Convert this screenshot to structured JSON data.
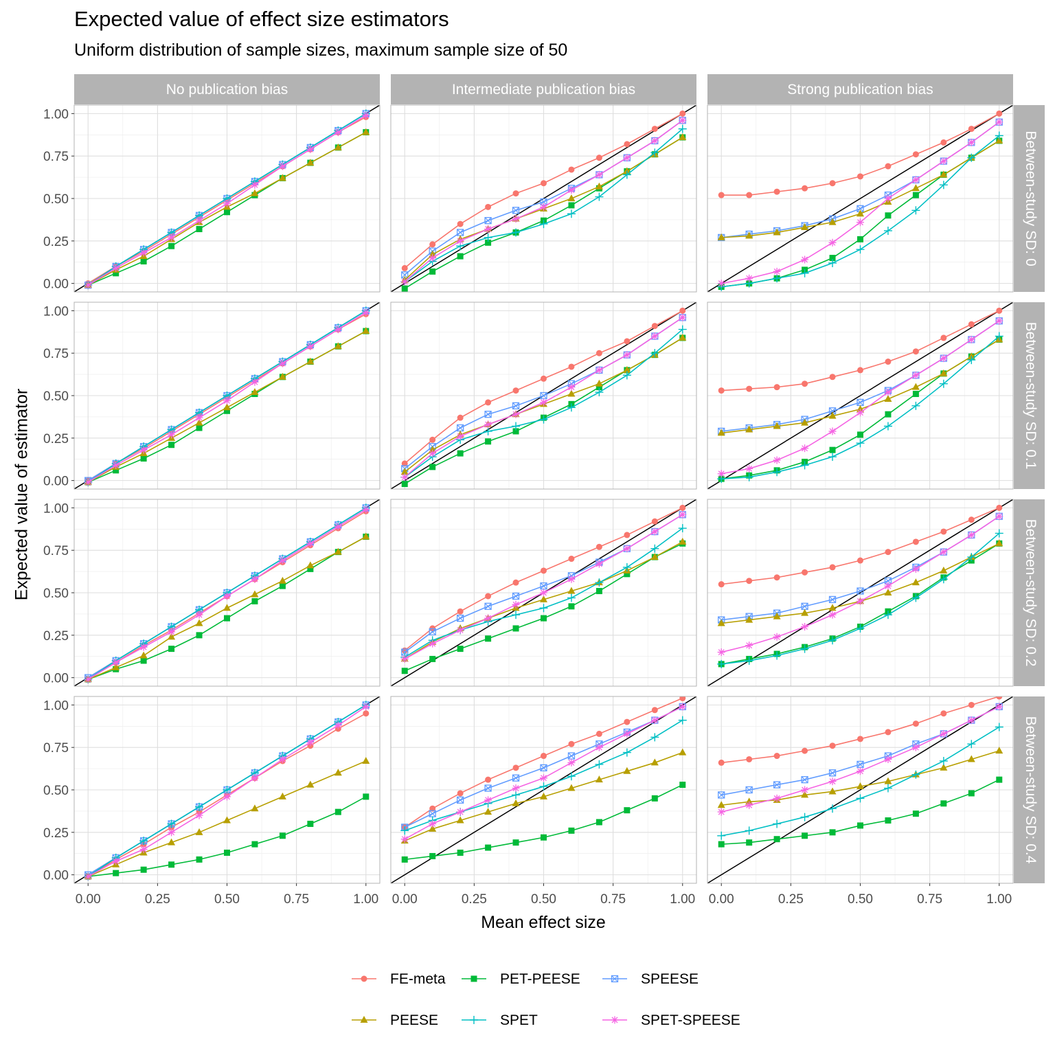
{
  "chart_data": {
    "type": "line",
    "title": "Expected value of effect size estimators",
    "subtitle": "Uniform distribution of sample sizes, maximum sample size of 50",
    "xlabel": "Mean effect size",
    "ylabel": "Expected value of estimator",
    "xlim": [
      -0.05,
      1.05
    ],
    "ylim": [
      -0.05,
      1.05
    ],
    "x_ticks": [
      "0.00",
      "0.25",
      "0.50",
      "0.75",
      "1.00"
    ],
    "y_ticks": [
      "0.00",
      "0.25",
      "0.50",
      "0.75",
      "1.00"
    ],
    "x": [
      0,
      0.1,
      0.2,
      0.3,
      0.4,
      0.5,
      0.6,
      0.7,
      0.8,
      0.9,
      1.0
    ],
    "reference_line": "y = x",
    "column_facets": [
      "No publication bias",
      "Intermediate publication bias",
      "Strong publication bias"
    ],
    "row_facets": [
      "Between-study SD: 0",
      "Between-study SD: 0.1",
      "Between-study SD: 0.2",
      "Between-study SD: 0.4"
    ],
    "legend_order": [
      "FE-meta",
      "PET-PEESE",
      "SPEESE",
      "PEESE",
      "SPET",
      "SPET-SPEESE"
    ],
    "series_styles": {
      "FE-meta": {
        "color": "#F8766D",
        "shape": "circle"
      },
      "PEESE": {
        "color": "#B79F00",
        "shape": "triangle"
      },
      "PET-PEESE": {
        "color": "#00BA38",
        "shape": "square"
      },
      "SPET": {
        "color": "#00BFC4",
        "shape": "plus"
      },
      "SPEESE": {
        "color": "#619CFF",
        "shape": "square-x"
      },
      "SPET-SPEESE": {
        "color": "#F564E3",
        "shape": "asterisk"
      }
    },
    "panels": [
      [
        {
          "FE-meta": [
            0.0,
            0.1,
            0.19,
            0.29,
            0.39,
            0.49,
            0.59,
            0.69,
            0.79,
            0.89,
            0.98
          ],
          "PEESE": [
            -0.01,
            0.08,
            0.16,
            0.26,
            0.36,
            0.45,
            0.53,
            0.62,
            0.71,
            0.8,
            0.89
          ],
          "PET-PEESE": [
            -0.01,
            0.06,
            0.13,
            0.22,
            0.32,
            0.42,
            0.52,
            0.62,
            0.71,
            0.8,
            0.89
          ],
          "SPET": [
            -0.01,
            0.1,
            0.2,
            0.3,
            0.4,
            0.5,
            0.6,
            0.7,
            0.8,
            0.9,
            1.0
          ],
          "SPEESE": [
            -0.01,
            0.1,
            0.2,
            0.3,
            0.4,
            0.5,
            0.6,
            0.7,
            0.8,
            0.9,
            1.0
          ],
          "SPET-SPEESE": [
            -0.01,
            0.09,
            0.18,
            0.27,
            0.37,
            0.47,
            0.58,
            0.69,
            0.79,
            0.89,
            0.99
          ]
        },
        {
          "FE-meta": [
            0.09,
            0.23,
            0.35,
            0.45,
            0.53,
            0.59,
            0.67,
            0.74,
            0.82,
            0.91,
            1.0
          ],
          "PEESE": [
            0.02,
            0.17,
            0.26,
            0.32,
            0.38,
            0.44,
            0.5,
            0.57,
            0.66,
            0.76,
            0.86
          ],
          "PET-PEESE": [
            -0.03,
            0.07,
            0.16,
            0.24,
            0.3,
            0.37,
            0.46,
            0.56,
            0.66,
            0.76,
            0.86
          ],
          "SPET": [
            0.01,
            0.13,
            0.22,
            0.27,
            0.3,
            0.35,
            0.41,
            0.51,
            0.64,
            0.77,
            0.91
          ],
          "SPEESE": [
            0.05,
            0.19,
            0.3,
            0.37,
            0.43,
            0.48,
            0.56,
            0.64,
            0.74,
            0.84,
            0.96
          ],
          "SPET-SPEESE": [
            0.01,
            0.15,
            0.25,
            0.32,
            0.38,
            0.45,
            0.55,
            0.64,
            0.74,
            0.84,
            0.96
          ]
        },
        {
          "FE-meta": [
            0.52,
            0.52,
            0.54,
            0.56,
            0.59,
            0.63,
            0.69,
            0.76,
            0.83,
            0.91,
            1.0
          ],
          "PEESE": [
            0.27,
            0.28,
            0.3,
            0.33,
            0.36,
            0.41,
            0.48,
            0.56,
            0.64,
            0.74,
            0.84
          ],
          "PET-PEESE": [
            -0.02,
            0.0,
            0.03,
            0.08,
            0.15,
            0.26,
            0.4,
            0.52,
            0.64,
            0.74,
            0.84
          ],
          "SPET": [
            -0.02,
            0.0,
            0.03,
            0.06,
            0.12,
            0.2,
            0.31,
            0.43,
            0.58,
            0.74,
            0.87
          ],
          "SPEESE": [
            0.27,
            0.29,
            0.31,
            0.34,
            0.38,
            0.44,
            0.52,
            0.61,
            0.72,
            0.83,
            0.95
          ],
          "SPET-SPEESE": [
            0.0,
            0.03,
            0.07,
            0.14,
            0.24,
            0.36,
            0.5,
            0.61,
            0.72,
            0.83,
            0.95
          ]
        }
      ],
      [
        {
          "FE-meta": [
            0.0,
            0.1,
            0.19,
            0.29,
            0.39,
            0.49,
            0.59,
            0.69,
            0.79,
            0.89,
            0.98
          ],
          "PEESE": [
            -0.01,
            0.08,
            0.16,
            0.25,
            0.34,
            0.43,
            0.52,
            0.61,
            0.7,
            0.79,
            0.88
          ],
          "PET-PEESE": [
            -0.01,
            0.06,
            0.13,
            0.21,
            0.31,
            0.41,
            0.51,
            0.61,
            0.7,
            0.79,
            0.88
          ],
          "SPET": [
            -0.01,
            0.1,
            0.2,
            0.3,
            0.4,
            0.5,
            0.6,
            0.7,
            0.8,
            0.9,
            1.0
          ],
          "SPEESE": [
            0.0,
            0.1,
            0.2,
            0.3,
            0.4,
            0.5,
            0.6,
            0.7,
            0.8,
            0.9,
            1.0
          ],
          "SPET-SPEESE": [
            -0.01,
            0.09,
            0.18,
            0.27,
            0.37,
            0.47,
            0.58,
            0.69,
            0.79,
            0.89,
            0.99
          ]
        },
        {
          "FE-meta": [
            0.1,
            0.24,
            0.37,
            0.46,
            0.53,
            0.6,
            0.67,
            0.75,
            0.82,
            0.91,
            1.0
          ],
          "PEESE": [
            0.05,
            0.18,
            0.27,
            0.33,
            0.39,
            0.45,
            0.51,
            0.57,
            0.65,
            0.74,
            0.84
          ],
          "PET-PEESE": [
            -0.02,
            0.08,
            0.16,
            0.23,
            0.29,
            0.37,
            0.45,
            0.55,
            0.65,
            0.74,
            0.84
          ],
          "SPET": [
            0.02,
            0.14,
            0.24,
            0.29,
            0.32,
            0.36,
            0.43,
            0.52,
            0.62,
            0.75,
            0.89
          ],
          "SPEESE": [
            0.07,
            0.2,
            0.31,
            0.39,
            0.44,
            0.5,
            0.57,
            0.65,
            0.74,
            0.85,
            0.96
          ],
          "SPET-SPEESE": [
            0.02,
            0.16,
            0.26,
            0.33,
            0.39,
            0.46,
            0.55,
            0.65,
            0.74,
            0.85,
            0.96
          ]
        },
        {
          "FE-meta": [
            0.53,
            0.54,
            0.55,
            0.57,
            0.61,
            0.65,
            0.7,
            0.76,
            0.84,
            0.92,
            1.0
          ],
          "PEESE": [
            0.28,
            0.3,
            0.32,
            0.34,
            0.38,
            0.42,
            0.48,
            0.55,
            0.63,
            0.73,
            0.83
          ],
          "PET-PEESE": [
            0.01,
            0.03,
            0.06,
            0.11,
            0.18,
            0.27,
            0.39,
            0.51,
            0.63,
            0.73,
            0.83
          ],
          "SPET": [
            0.01,
            0.02,
            0.05,
            0.09,
            0.14,
            0.22,
            0.32,
            0.44,
            0.57,
            0.71,
            0.85
          ],
          "SPEESE": [
            0.29,
            0.31,
            0.33,
            0.36,
            0.41,
            0.46,
            0.53,
            0.62,
            0.72,
            0.83,
            0.94
          ],
          "SPET-SPEESE": [
            0.04,
            0.07,
            0.12,
            0.19,
            0.29,
            0.4,
            0.52,
            0.62,
            0.72,
            0.83,
            0.94
          ]
        }
      ],
      [
        {
          "FE-meta": [
            -0.01,
            0.09,
            0.19,
            0.28,
            0.38,
            0.48,
            0.58,
            0.68,
            0.78,
            0.88,
            0.98
          ],
          "PEESE": [
            -0.01,
            0.06,
            0.13,
            0.24,
            0.32,
            0.41,
            0.49,
            0.57,
            0.66,
            0.74,
            0.83
          ],
          "PET-PEESE": [
            -0.01,
            0.05,
            0.1,
            0.17,
            0.25,
            0.35,
            0.45,
            0.54,
            0.64,
            0.74,
            0.83
          ],
          "SPET": [
            -0.01,
            0.1,
            0.2,
            0.3,
            0.4,
            0.5,
            0.6,
            0.7,
            0.8,
            0.9,
            1.0
          ],
          "SPEESE": [
            0.0,
            0.1,
            0.2,
            0.3,
            0.4,
            0.5,
            0.6,
            0.7,
            0.8,
            0.9,
            1.0
          ],
          "SPET-SPEESE": [
            -0.01,
            0.09,
            0.18,
            0.27,
            0.37,
            0.48,
            0.58,
            0.69,
            0.79,
            0.89,
            0.99
          ]
        },
        {
          "FE-meta": [
            0.16,
            0.29,
            0.39,
            0.48,
            0.56,
            0.63,
            0.7,
            0.77,
            0.84,
            0.92,
            1.0
          ],
          "PEESE": [
            0.11,
            0.21,
            0.29,
            0.35,
            0.41,
            0.46,
            0.51,
            0.56,
            0.63,
            0.71,
            0.8
          ],
          "PET-PEESE": [
            0.04,
            0.11,
            0.17,
            0.23,
            0.29,
            0.35,
            0.42,
            0.51,
            0.61,
            0.71,
            0.79
          ],
          "SPET": [
            0.12,
            0.22,
            0.28,
            0.33,
            0.37,
            0.41,
            0.47,
            0.56,
            0.65,
            0.76,
            0.88
          ],
          "SPEESE": [
            0.15,
            0.27,
            0.35,
            0.42,
            0.48,
            0.54,
            0.6,
            0.68,
            0.76,
            0.86,
            0.96
          ],
          "SPET-SPEESE": [
            0.11,
            0.2,
            0.28,
            0.35,
            0.43,
            0.5,
            0.58,
            0.67,
            0.76,
            0.86,
            0.96
          ]
        },
        {
          "FE-meta": [
            0.55,
            0.57,
            0.59,
            0.62,
            0.65,
            0.69,
            0.74,
            0.8,
            0.86,
            0.93,
            1.0
          ],
          "PEESE": [
            0.32,
            0.34,
            0.36,
            0.38,
            0.41,
            0.45,
            0.5,
            0.56,
            0.63,
            0.71,
            0.79
          ],
          "PET-PEESE": [
            0.08,
            0.11,
            0.14,
            0.18,
            0.23,
            0.3,
            0.39,
            0.48,
            0.59,
            0.69,
            0.79
          ],
          "SPET": [
            0.08,
            0.1,
            0.13,
            0.17,
            0.22,
            0.29,
            0.37,
            0.47,
            0.58,
            0.71,
            0.85
          ],
          "SPEESE": [
            0.34,
            0.36,
            0.38,
            0.42,
            0.46,
            0.51,
            0.57,
            0.65,
            0.74,
            0.84,
            0.95
          ],
          "SPET-SPEESE": [
            0.15,
            0.19,
            0.24,
            0.3,
            0.37,
            0.45,
            0.54,
            0.64,
            0.74,
            0.84,
            0.95
          ]
        }
      ],
      [
        {
          "FE-meta": [
            -0.01,
            0.09,
            0.18,
            0.28,
            0.37,
            0.47,
            0.57,
            0.67,
            0.76,
            0.86,
            0.95
          ],
          "PEESE": [
            -0.01,
            0.06,
            0.13,
            0.19,
            0.25,
            0.32,
            0.39,
            0.46,
            0.53,
            0.6,
            0.67
          ],
          "PET-PEESE": [
            -0.01,
            0.01,
            0.03,
            0.06,
            0.09,
            0.13,
            0.18,
            0.23,
            0.3,
            0.37,
            0.46
          ],
          "SPET": [
            -0.01,
            0.1,
            0.2,
            0.3,
            0.4,
            0.5,
            0.6,
            0.7,
            0.8,
            0.9,
            1.0
          ],
          "SPEESE": [
            0.0,
            0.1,
            0.2,
            0.3,
            0.4,
            0.5,
            0.6,
            0.7,
            0.8,
            0.9,
            1.0
          ],
          "SPET-SPEESE": [
            -0.01,
            0.08,
            0.15,
            0.25,
            0.35,
            0.46,
            0.57,
            0.68,
            0.78,
            0.88,
            0.99
          ]
        },
        {
          "FE-meta": [
            0.28,
            0.39,
            0.48,
            0.56,
            0.63,
            0.7,
            0.77,
            0.83,
            0.9,
            0.97,
            1.04
          ],
          "PEESE": [
            0.2,
            0.27,
            0.32,
            0.37,
            0.42,
            0.46,
            0.51,
            0.56,
            0.61,
            0.66,
            0.72
          ],
          "PET-PEESE": [
            0.09,
            0.11,
            0.13,
            0.16,
            0.19,
            0.22,
            0.26,
            0.31,
            0.38,
            0.45,
            0.53
          ],
          "SPET": [
            0.26,
            0.32,
            0.37,
            0.42,
            0.47,
            0.52,
            0.58,
            0.65,
            0.72,
            0.81,
            0.91
          ],
          "SPEESE": [
            0.28,
            0.36,
            0.44,
            0.51,
            0.57,
            0.63,
            0.7,
            0.77,
            0.84,
            0.91,
            0.99
          ],
          "SPET-SPEESE": [
            0.21,
            0.3,
            0.37,
            0.44,
            0.51,
            0.57,
            0.66,
            0.75,
            0.83,
            0.91,
            0.99
          ]
        },
        {
          "FE-meta": [
            0.66,
            0.68,
            0.7,
            0.73,
            0.76,
            0.8,
            0.84,
            0.89,
            0.95,
            1.0,
            1.05
          ],
          "PEESE": [
            0.41,
            0.43,
            0.44,
            0.47,
            0.49,
            0.52,
            0.55,
            0.59,
            0.63,
            0.68,
            0.73
          ],
          "PET-PEESE": [
            0.18,
            0.19,
            0.21,
            0.23,
            0.25,
            0.29,
            0.32,
            0.36,
            0.42,
            0.48,
            0.56
          ],
          "SPET": [
            0.23,
            0.26,
            0.3,
            0.34,
            0.39,
            0.45,
            0.51,
            0.59,
            0.67,
            0.77,
            0.87
          ],
          "SPEESE": [
            0.47,
            0.5,
            0.53,
            0.56,
            0.6,
            0.65,
            0.7,
            0.77,
            0.83,
            0.91,
            0.99
          ],
          "SPET-SPEESE": [
            0.37,
            0.41,
            0.45,
            0.5,
            0.55,
            0.61,
            0.68,
            0.75,
            0.83,
            0.91,
            0.99
          ]
        }
      ]
    ]
  }
}
